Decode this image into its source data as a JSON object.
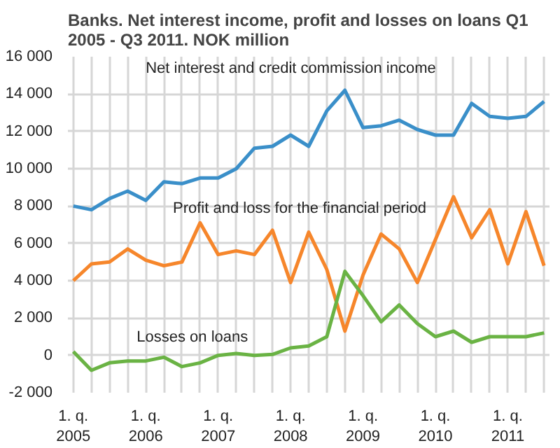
{
  "chart_data": {
    "type": "line",
    "title": "Banks. Net interest income, profit and losses on loans Q1 2005 - Q3 2011. NOK million",
    "categories": [
      "1. q.\n2005",
      null,
      null,
      null,
      "1. q.\n2006",
      null,
      null,
      null,
      "1. q.\n2007",
      null,
      null,
      null,
      "1. q.\n2008",
      null,
      null,
      null,
      "1. q.\n2009",
      null,
      null,
      null,
      "1. q.\n2010",
      null,
      null,
      null,
      "1. q.\n2011",
      null,
      null
    ],
    "series": [
      {
        "name": "Net interest and credit commission income",
        "color": "#3a8fc9",
        "values": [
          8000,
          7800,
          8400,
          8800,
          8300,
          9300,
          9200,
          9500,
          9500,
          10000,
          11100,
          11200,
          11800,
          11200,
          13100,
          14200,
          12200,
          12300,
          12600,
          12100,
          11800,
          11800,
          13500,
          12800,
          12700,
          12800,
          13600
        ]
      },
      {
        "name": "Profit and loss for the financial period",
        "color": "#f6862b",
        "values": [
          4000,
          4900,
          5000,
          5700,
          5100,
          4800,
          5000,
          7100,
          5400,
          5600,
          5400,
          6700,
          3900,
          6600,
          4600,
          1300,
          4300,
          6500,
          5700,
          3900,
          6200,
          8500,
          6300,
          7800,
          4900,
          7700,
          4800
        ]
      },
      {
        "name": "Losses on loans",
        "color": "#6ab344",
        "values": [
          200,
          -800,
          -400,
          -300,
          -300,
          -100,
          -600,
          -400,
          0,
          100,
          0,
          50,
          400,
          500,
          1000,
          4500,
          3200,
          1800,
          2700,
          1700,
          1000,
          1300,
          700,
          1000,
          1000,
          1000,
          1200
        ]
      }
    ],
    "ylim": [
      -2000,
      16000
    ],
    "yticks": [
      {
        "value": -2000,
        "label": "-2 000"
      },
      {
        "value": 0,
        "label": "0"
      },
      {
        "value": 2000,
        "label": "2 000"
      },
      {
        "value": 4000,
        "label": "4 000"
      },
      {
        "value": 6000,
        "label": "6 000"
      },
      {
        "value": 8000,
        "label": "8 000"
      },
      {
        "value": 10000,
        "label": "10 000"
      },
      {
        "value": 12000,
        "label": "12 000"
      },
      {
        "value": 14000,
        "label": "14 000"
      },
      {
        "value": 16000,
        "label": "16 000"
      }
    ],
    "grid": true,
    "marker": "none",
    "line_style": "solid"
  }
}
